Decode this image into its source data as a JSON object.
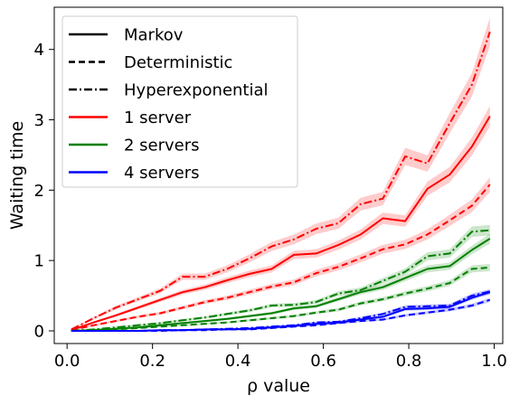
{
  "chart_data": {
    "type": "line",
    "title": "",
    "xlabel": "ρ value",
    "ylabel": "Waiting time",
    "xlim": [
      -0.03,
      1.02
    ],
    "ylim": [
      -0.18,
      4.6
    ],
    "xticks": [
      0.0,
      0.2,
      0.4,
      0.6,
      0.8,
      1.0
    ],
    "xtick_labels": [
      "0.0",
      "0.2",
      "0.4",
      "0.6",
      "0.8",
      "1.0"
    ],
    "yticks": [
      0,
      1,
      2,
      3,
      4
    ],
    "ytick_labels": [
      "0",
      "1",
      "2",
      "3",
      "4"
    ],
    "grid": false,
    "legend_position": "upper-left",
    "legend": [
      {
        "label": "Markov",
        "color": "#000000",
        "dash": "solid"
      },
      {
        "label": "Deterministic",
        "color": "#000000",
        "dash": "dashed"
      },
      {
        "label": "Hyperexponential",
        "color": "#000000",
        "dash": "dashdot"
      },
      {
        "label": "1 server",
        "color": "#ff0000",
        "dash": "solid"
      },
      {
        "label": "2 servers",
        "color": "#008000",
        "dash": "solid"
      },
      {
        "label": "4 servers",
        "color": "#0000ff",
        "dash": "solid"
      }
    ],
    "x": [
      0.01,
      0.0621,
      0.1142,
      0.1663,
      0.2184,
      0.2705,
      0.3226,
      0.3747,
      0.4268,
      0.4789,
      0.531,
      0.5831,
      0.6352,
      0.6873,
      0.7394,
      0.7915,
      0.8436,
      0.8957,
      0.9478,
      0.99
    ],
    "series": [
      {
        "name": "1 server, Markov",
        "servers": 1,
        "model": "Markov",
        "color": "#ff0000",
        "dash": "solid",
        "values": [
          0.01,
          0.12,
          0.22,
          0.33,
          0.44,
          0.55,
          0.62,
          0.72,
          0.81,
          0.88,
          1.08,
          1.1,
          1.22,
          1.37,
          1.6,
          1.56,
          2.02,
          2.22,
          2.62,
          3.05
        ]
      },
      {
        "name": "1 server, Deterministic",
        "servers": 1,
        "model": "Deterministic",
        "color": "#ff0000",
        "dash": "dashed",
        "values": [
          0.01,
          0.08,
          0.14,
          0.2,
          0.25,
          0.33,
          0.41,
          0.47,
          0.55,
          0.63,
          0.69,
          0.82,
          0.91,
          1.03,
          1.16,
          1.23,
          1.37,
          1.57,
          1.78,
          2.08
        ]
      },
      {
        "name": "1 server, Hyperexponential",
        "servers": 1,
        "model": "Hyperexponential",
        "color": "#ff0000",
        "dash": "dashdot",
        "values": [
          0.02,
          0.18,
          0.33,
          0.45,
          0.57,
          0.77,
          0.77,
          0.88,
          1.03,
          1.2,
          1.3,
          1.45,
          1.53,
          1.8,
          1.88,
          2.48,
          2.38,
          2.95,
          3.5,
          4.25
        ]
      },
      {
        "name": "2 servers, Markov",
        "servers": 2,
        "model": "Markov",
        "color": "#008000",
        "dash": "solid",
        "values": [
          0.0,
          0.01,
          0.03,
          0.05,
          0.08,
          0.11,
          0.14,
          0.17,
          0.21,
          0.25,
          0.32,
          0.35,
          0.45,
          0.55,
          0.62,
          0.75,
          0.88,
          0.92,
          1.15,
          1.31
        ]
      },
      {
        "name": "2 servers, Deterministic",
        "servers": 2,
        "model": "Deterministic",
        "color": "#008000",
        "dash": "dashed",
        "values": [
          0.0,
          0.01,
          0.02,
          0.04,
          0.06,
          0.08,
          0.1,
          0.12,
          0.15,
          0.18,
          0.21,
          0.26,
          0.3,
          0.39,
          0.45,
          0.53,
          0.6,
          0.68,
          0.88,
          0.9
        ]
      },
      {
        "name": "2 servers, Hyperexponential",
        "servers": 2,
        "model": "Hyperexponential",
        "color": "#008000",
        "dash": "dashdot",
        "values": [
          0.0,
          0.02,
          0.05,
          0.08,
          0.11,
          0.15,
          0.19,
          0.24,
          0.29,
          0.36,
          0.37,
          0.41,
          0.53,
          0.58,
          0.71,
          0.84,
          1.06,
          1.1,
          1.41,
          1.43
        ]
      },
      {
        "name": "4 servers, Markov",
        "servers": 4,
        "model": "Markov",
        "color": "#0000ff",
        "dash": "solid",
        "values": [
          0.0,
          0.0,
          0.0,
          0.0,
          0.01,
          0.01,
          0.02,
          0.02,
          0.03,
          0.05,
          0.07,
          0.1,
          0.12,
          0.16,
          0.2,
          0.31,
          0.32,
          0.34,
          0.47,
          0.55
        ]
      },
      {
        "name": "4 servers, Deterministic",
        "servers": 4,
        "model": "Deterministic",
        "color": "#0000ff",
        "dash": "dashed",
        "values": [
          0.0,
          0.0,
          0.0,
          0.0,
          0.0,
          0.01,
          0.01,
          0.02,
          0.02,
          0.04,
          0.06,
          0.08,
          0.11,
          0.14,
          0.16,
          0.22,
          0.26,
          0.3,
          0.36,
          0.44
        ]
      },
      {
        "name": "4 servers, Hyperexponential",
        "servers": 4,
        "model": "Hyperexponential",
        "color": "#0000ff",
        "dash": "dashdot",
        "values": [
          0.0,
          0.0,
          0.0,
          0.0,
          0.01,
          0.01,
          0.02,
          0.03,
          0.04,
          0.06,
          0.08,
          0.12,
          0.13,
          0.18,
          0.24,
          0.34,
          0.35,
          0.36,
          0.5,
          0.56
        ]
      }
    ]
  }
}
